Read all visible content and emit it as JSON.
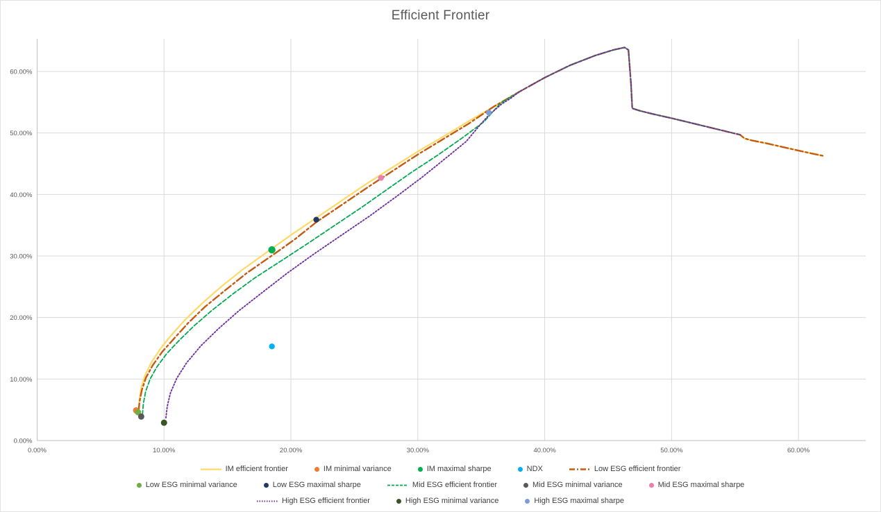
{
  "chart_data": {
    "type": "line",
    "title": "Efficient Frontier",
    "units": "percent",
    "grid": true,
    "legend_position": "bottom",
    "x_axis": {
      "max": 65.3,
      "ticks": [
        {
          "v": 0,
          "label": "0.00%"
        },
        {
          "v": 10,
          "label": "10.00%"
        },
        {
          "v": 20,
          "label": "20.00%"
        },
        {
          "v": 30,
          "label": "30.00%"
        },
        {
          "v": 40,
          "label": "40.00%"
        },
        {
          "v": 50,
          "label": "50.00%"
        },
        {
          "v": 60,
          "label": "60.00%"
        }
      ]
    },
    "y_axis": {
      "max": 65.3,
      "ticks": [
        {
          "v": 0,
          "label": "0.00%"
        },
        {
          "v": 10,
          "label": "10.00%"
        },
        {
          "v": 20,
          "label": "20.00%"
        },
        {
          "v": 30,
          "label": "30.00%"
        },
        {
          "v": 40,
          "label": "40.00%"
        },
        {
          "v": 50,
          "label": "50.00%"
        },
        {
          "v": 60,
          "label": "60.00%"
        }
      ]
    },
    "style": {
      "gridline_color": "#d9d9d9",
      "axis_color": "#bfbfbf",
      "text_color": "#595959"
    },
    "series": [
      {
        "key": "im",
        "label": "IM efficient frontier",
        "color": "#FFD966",
        "width": 2.2,
        "dash": "",
        "legend_dash": "",
        "points": [
          [
            8.0,
            4.8
          ],
          [
            8.05,
            6.5
          ],
          [
            8.2,
            8.6
          ],
          [
            8.5,
            10.6
          ],
          [
            9.0,
            12.7
          ],
          [
            9.7,
            14.9
          ],
          [
            10.6,
            17.2
          ],
          [
            11.7,
            19.7
          ],
          [
            13.0,
            22.3
          ],
          [
            14.5,
            25.0
          ],
          [
            16.2,
            27.8
          ],
          [
            18.5,
            31.2
          ],
          [
            20.0,
            33.4
          ],
          [
            22.0,
            36.2
          ],
          [
            24.0,
            39.0
          ],
          [
            26.0,
            41.8
          ],
          [
            28.0,
            44.4
          ],
          [
            30.0,
            47.0
          ],
          [
            32.0,
            49.4
          ],
          [
            34.0,
            51.9
          ],
          [
            36.0,
            54.3
          ],
          [
            38.0,
            56.7
          ],
          [
            40.0,
            59.0
          ],
          [
            42.0,
            61.0
          ],
          [
            44.0,
            62.6
          ],
          [
            45.4,
            63.5
          ],
          [
            46.3,
            63.9
          ],
          [
            46.6,
            63.5
          ],
          [
            46.8,
            58.0
          ],
          [
            46.9,
            54.0
          ],
          [
            47.5,
            53.6
          ],
          [
            48.5,
            53.1
          ],
          [
            50.0,
            52.4
          ],
          [
            52.0,
            51.4
          ],
          [
            54.0,
            50.4
          ],
          [
            55.4,
            49.7
          ],
          [
            55.75,
            49.1
          ],
          [
            56.3,
            48.8
          ],
          [
            57.5,
            48.3
          ],
          [
            59.0,
            47.6
          ],
          [
            60.5,
            46.9
          ],
          [
            61.9,
            46.3
          ]
        ]
      },
      {
        "key": "low",
        "label": "Low ESG efficient frontier",
        "color": "#C55A11",
        "width": 2.4,
        "dash": "11 4 3 4",
        "legend_dash": "8 3 2 3",
        "points": [
          [
            8.0,
            4.8
          ],
          [
            8.07,
            6.3
          ],
          [
            8.25,
            8.2
          ],
          [
            8.57,
            10.2
          ],
          [
            9.1,
            12.2
          ],
          [
            9.85,
            14.4
          ],
          [
            10.8,
            16.6
          ],
          [
            11.9,
            19.1
          ],
          [
            13.2,
            21.7
          ],
          [
            14.8,
            24.4
          ],
          [
            16.5,
            27.2
          ],
          [
            18.8,
            30.5
          ],
          [
            20.3,
            32.7
          ],
          [
            22.0,
            35.5
          ],
          [
            24.0,
            38.3
          ],
          [
            26.0,
            41.1
          ],
          [
            28.0,
            43.8
          ],
          [
            30.0,
            46.5
          ],
          [
            32.0,
            49.0
          ],
          [
            34.0,
            51.5
          ],
          [
            36.0,
            54.3
          ],
          [
            38.0,
            56.7
          ],
          [
            40.0,
            59.0
          ],
          [
            42.0,
            61.0
          ],
          [
            44.0,
            62.6
          ],
          [
            45.4,
            63.5
          ],
          [
            46.3,
            63.9
          ],
          [
            46.6,
            63.5
          ],
          [
            46.8,
            58.0
          ],
          [
            46.9,
            54.0
          ],
          [
            47.5,
            53.6
          ],
          [
            48.5,
            53.1
          ],
          [
            50.0,
            52.4
          ],
          [
            52.0,
            51.4
          ],
          [
            54.0,
            50.4
          ],
          [
            55.4,
            49.7
          ],
          [
            55.75,
            49.1
          ],
          [
            56.3,
            48.8
          ],
          [
            57.5,
            48.3
          ],
          [
            59.0,
            47.6
          ],
          [
            60.5,
            46.9
          ],
          [
            61.9,
            46.3
          ]
        ]
      },
      {
        "key": "mid",
        "label": "Mid ESG efficient frontier",
        "color": "#00A94F",
        "width": 1.8,
        "dash": "6 3",
        "legend_dash": "4 2",
        "points": [
          [
            8.3,
            4.2
          ],
          [
            8.37,
            6.0
          ],
          [
            8.55,
            8.0
          ],
          [
            8.9,
            10.0
          ],
          [
            9.45,
            12.0
          ],
          [
            10.2,
            14.1
          ],
          [
            11.2,
            16.3
          ],
          [
            12.4,
            18.7
          ],
          [
            13.8,
            21.2
          ],
          [
            15.4,
            23.8
          ],
          [
            17.2,
            26.5
          ],
          [
            19.3,
            29.3
          ],
          [
            21.3,
            32.0
          ],
          [
            23.4,
            34.9
          ],
          [
            25.5,
            37.8
          ],
          [
            27.5,
            40.7
          ],
          [
            29.5,
            43.6
          ],
          [
            31.5,
            46.3
          ],
          [
            33.5,
            49.2
          ],
          [
            35.2,
            51.8
          ],
          [
            36.5,
            54.8
          ],
          [
            38.0,
            56.7
          ],
          [
            40.0,
            59.0
          ],
          [
            42.0,
            61.0
          ],
          [
            44.0,
            62.6
          ],
          [
            45.4,
            63.5
          ],
          [
            46.3,
            63.9
          ],
          [
            46.6,
            63.5
          ],
          [
            46.8,
            58.0
          ],
          [
            46.9,
            54.0
          ],
          [
            47.5,
            53.6
          ],
          [
            48.5,
            53.1
          ],
          [
            50.0,
            52.4
          ],
          [
            52.0,
            51.4
          ],
          [
            54.0,
            50.4
          ],
          [
            55.4,
            49.7
          ]
        ]
      },
      {
        "key": "high",
        "label": "High ESG efficient frontier",
        "color": "#7030A0",
        "width": 1.9,
        "dash": "1.8 2.6",
        "legend_dash": "1.5 2",
        "points": [
          [
            10.15,
            3.7
          ],
          [
            10.25,
            5.5
          ],
          [
            10.5,
            7.7
          ],
          [
            11.0,
            10.1
          ],
          [
            11.8,
            12.7
          ],
          [
            12.9,
            15.4
          ],
          [
            14.3,
            18.2
          ],
          [
            15.9,
            21.1
          ],
          [
            17.7,
            24.0
          ],
          [
            19.7,
            27.2
          ],
          [
            21.8,
            30.3
          ],
          [
            24.0,
            33.4
          ],
          [
            26.2,
            36.5
          ],
          [
            28.4,
            39.8
          ],
          [
            30.4,
            42.9
          ],
          [
            32.2,
            45.9
          ],
          [
            33.8,
            48.6
          ],
          [
            34.9,
            51.3
          ],
          [
            35.6,
            52.9
          ],
          [
            36.6,
            54.7
          ],
          [
            37.3,
            55.6
          ],
          [
            38.0,
            56.7
          ],
          [
            40.0,
            59.0
          ],
          [
            42.0,
            61.0
          ],
          [
            44.0,
            62.6
          ],
          [
            45.4,
            63.5
          ],
          [
            46.3,
            63.9
          ],
          [
            46.6,
            63.5
          ],
          [
            46.8,
            58.0
          ],
          [
            46.9,
            54.0
          ],
          [
            47.5,
            53.6
          ],
          [
            48.5,
            53.1
          ],
          [
            50.0,
            52.4
          ],
          [
            52.0,
            51.4
          ],
          [
            54.0,
            50.4
          ],
          [
            55.4,
            49.7
          ]
        ]
      }
    ],
    "points": [
      {
        "key": "im-minimal-variance",
        "label": "IM minimal variance",
        "color": "#ED7D31",
        "x": 7.8,
        "y": 4.9,
        "r": 4.5
      },
      {
        "key": "low-esg-minimal-variance",
        "label": "Low ESG minimal variance",
        "color": "#70AD47",
        "x": 7.95,
        "y": 4.6,
        "r": 4.5
      },
      {
        "key": "mid-esg-minimal-variance",
        "label": "Mid ESG minimal variance",
        "color": "#595959",
        "x": 8.2,
        "y": 3.9,
        "r": 4.5
      },
      {
        "key": "high-esg-minimal-variance",
        "label": "High ESG minimal variance",
        "color": "#375623",
        "x": 10.0,
        "y": 2.9,
        "r": 4.5
      },
      {
        "key": "ndx",
        "label": "NDX",
        "color": "#00B0F0",
        "x": 18.5,
        "y": 15.3,
        "r": 4.2
      },
      {
        "key": "im-maximal-sharpe",
        "label": "IM maximal sharpe",
        "color": "#00B050",
        "x": 18.5,
        "y": 31.0,
        "r": 5.2
      },
      {
        "key": "low-esg-maximal-sharpe",
        "label": "Low ESG maximal sharpe",
        "color": "#1F3864",
        "x": 22.0,
        "y": 35.9,
        "r": 4.2
      },
      {
        "key": "mid-esg-maximal-sharpe",
        "label": "Mid ESG maximal sharpe",
        "color": "#EA7FB1",
        "x": 27.1,
        "y": 42.7,
        "r": 4.2
      },
      {
        "key": "high-esg-maximal-sharpe",
        "label": "High ESG maximal sharpe",
        "color": "#7D9BD6",
        "x": 35.6,
        "y": 53.3,
        "r": 4.2
      }
    ]
  },
  "legend": {
    "rows": [
      [
        {
          "marker": "line",
          "key": "im",
          "label": "IM efficient frontier"
        },
        {
          "marker": "dot",
          "key": "im-minimal-variance",
          "label": "IM minimal variance"
        },
        {
          "marker": "dot",
          "key": "im-maximal-sharpe",
          "label": "IM maximal sharpe"
        },
        {
          "marker": "dot",
          "key": "ndx",
          "label": "NDX"
        },
        {
          "marker": "line",
          "key": "low",
          "label": "Low ESG efficient frontier"
        }
      ],
      [
        {
          "marker": "dot",
          "key": "low-esg-minimal-variance",
          "label": "Low ESG minimal variance"
        },
        {
          "marker": "dot",
          "key": "low-esg-maximal-sharpe",
          "label": "Low ESG maximal sharpe"
        },
        {
          "marker": "line",
          "key": "mid",
          "label": "Mid ESG efficient frontier"
        },
        {
          "marker": "dot",
          "key": "mid-esg-minimal-variance",
          "label": "Mid ESG minimal variance"
        },
        {
          "marker": "dot",
          "key": "mid-esg-maximal-sharpe",
          "label": "Mid ESG maximal sharpe"
        }
      ],
      [
        {
          "marker": "line",
          "key": "high",
          "label": "High ESG efficient frontier"
        },
        {
          "marker": "dot",
          "key": "high-esg-minimal-variance",
          "label": "High ESG minimal variance"
        },
        {
          "marker": "dot",
          "key": "high-esg-maximal-sharpe",
          "label": "High ESG maximal sharpe"
        }
      ]
    ]
  }
}
